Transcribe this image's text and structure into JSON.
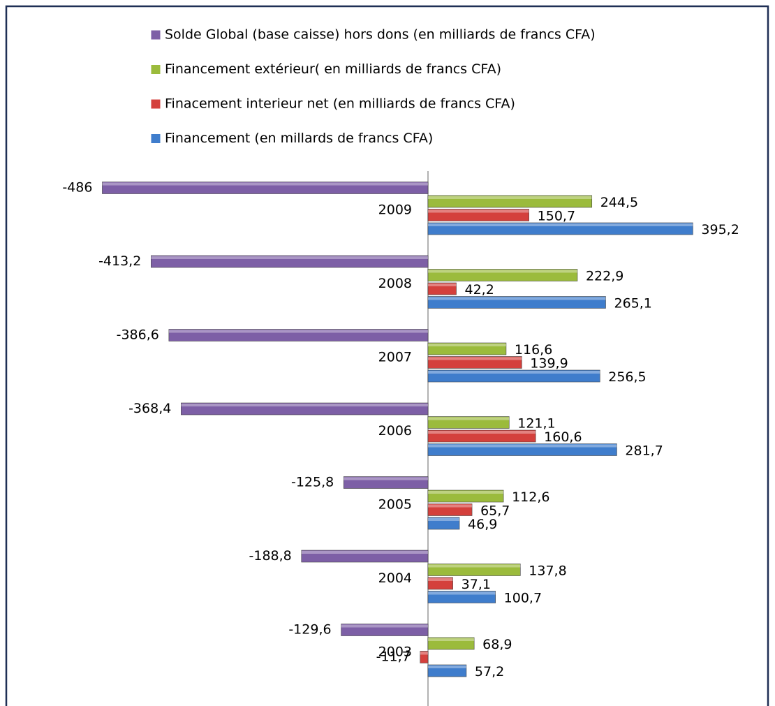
{
  "chart_data": {
    "type": "hbar",
    "categories": [
      "2003",
      "2004",
      "2005",
      "2006",
      "2007",
      "2008",
      "2009"
    ],
    "series": [
      {
        "name": "Solde Global (base caisse) hors dons (en milliards de francs CFA)",
        "color": "#7d5fa6",
        "values": [
          -129.6,
          -188.8,
          -125.8,
          -368.4,
          -386.6,
          -413.2,
          -486
        ],
        "value_labels": [
          "-129,6",
          "-188,8",
          "-125,8",
          "-368,4",
          "-386,6",
          "-413,2",
          "-486"
        ]
      },
      {
        "name": "Financement extérieur( en milliards de francs CFA)",
        "color": "#9bbb3c",
        "values": [
          68.9,
          137.8,
          112.6,
          121.1,
          116.6,
          222.9,
          244.5
        ],
        "value_labels": [
          "68,9",
          "137,8",
          "112,6",
          "121,1",
          "116,6",
          "222,9",
          "244,5"
        ]
      },
      {
        "name": "Finacement interieur net (en milliards de francs CFA)",
        "color": "#d4403c",
        "values": [
          -11.7,
          37.1,
          65.7,
          160.6,
          139.9,
          42.2,
          150.7
        ],
        "value_labels": [
          "-11,7",
          "37,1",
          "65,7",
          "160,6",
          "139,9",
          "42,2",
          "150,7"
        ]
      },
      {
        "name": "Financement (en millards de francs CFA)",
        "color": "#3f7dcc",
        "values": [
          57.2,
          100.7,
          46.9,
          281.7,
          256.5,
          265.1,
          395.2
        ],
        "value_labels": [
          "57,2",
          "100,7",
          "46,9",
          "281,7",
          "256,5",
          "265,1",
          "395,2"
        ]
      }
    ]
  }
}
